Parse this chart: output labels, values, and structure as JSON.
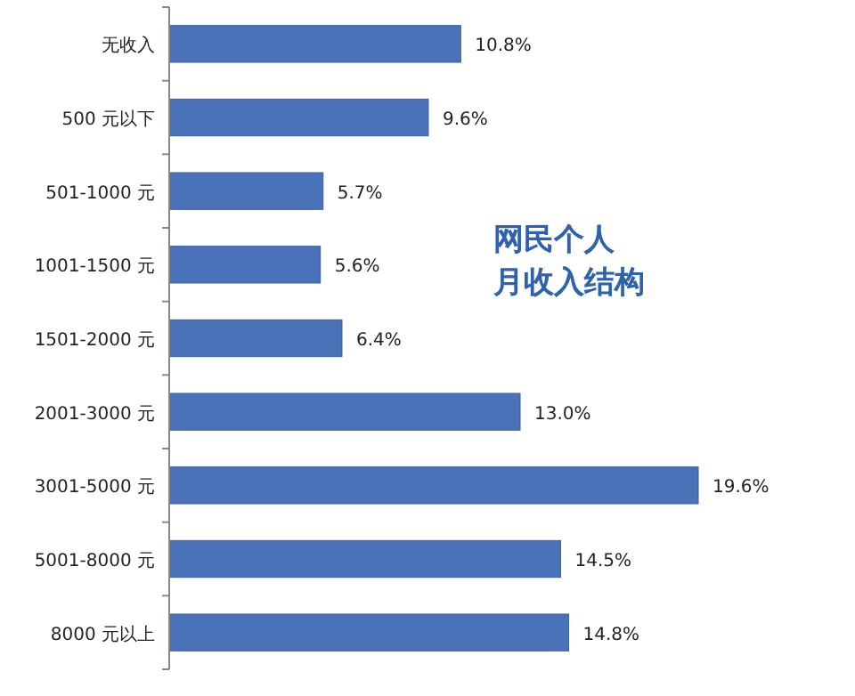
{
  "chart_data": {
    "type": "bar",
    "orientation": "horizontal",
    "title": "网民个人月收入结构",
    "categories": [
      "无收入",
      "500 元以下",
      "501-1000 元",
      "1001-1500 元",
      "1501-2000 元",
      "2001-3000 元",
      "3001-5000 元",
      "5001-8000 元",
      "8000 元以上"
    ],
    "values": [
      10.8,
      9.6,
      5.7,
      5.6,
      6.4,
      13.0,
      19.6,
      14.5,
      14.8
    ],
    "value_labels": [
      "10.8%",
      "9.6%",
      "5.7%",
      "5.6%",
      "6.4%",
      "13.0%",
      "19.6%",
      "14.5%",
      "14.8%"
    ],
    "color": "#4a72b8",
    "tick_labels": "y"
  }
}
